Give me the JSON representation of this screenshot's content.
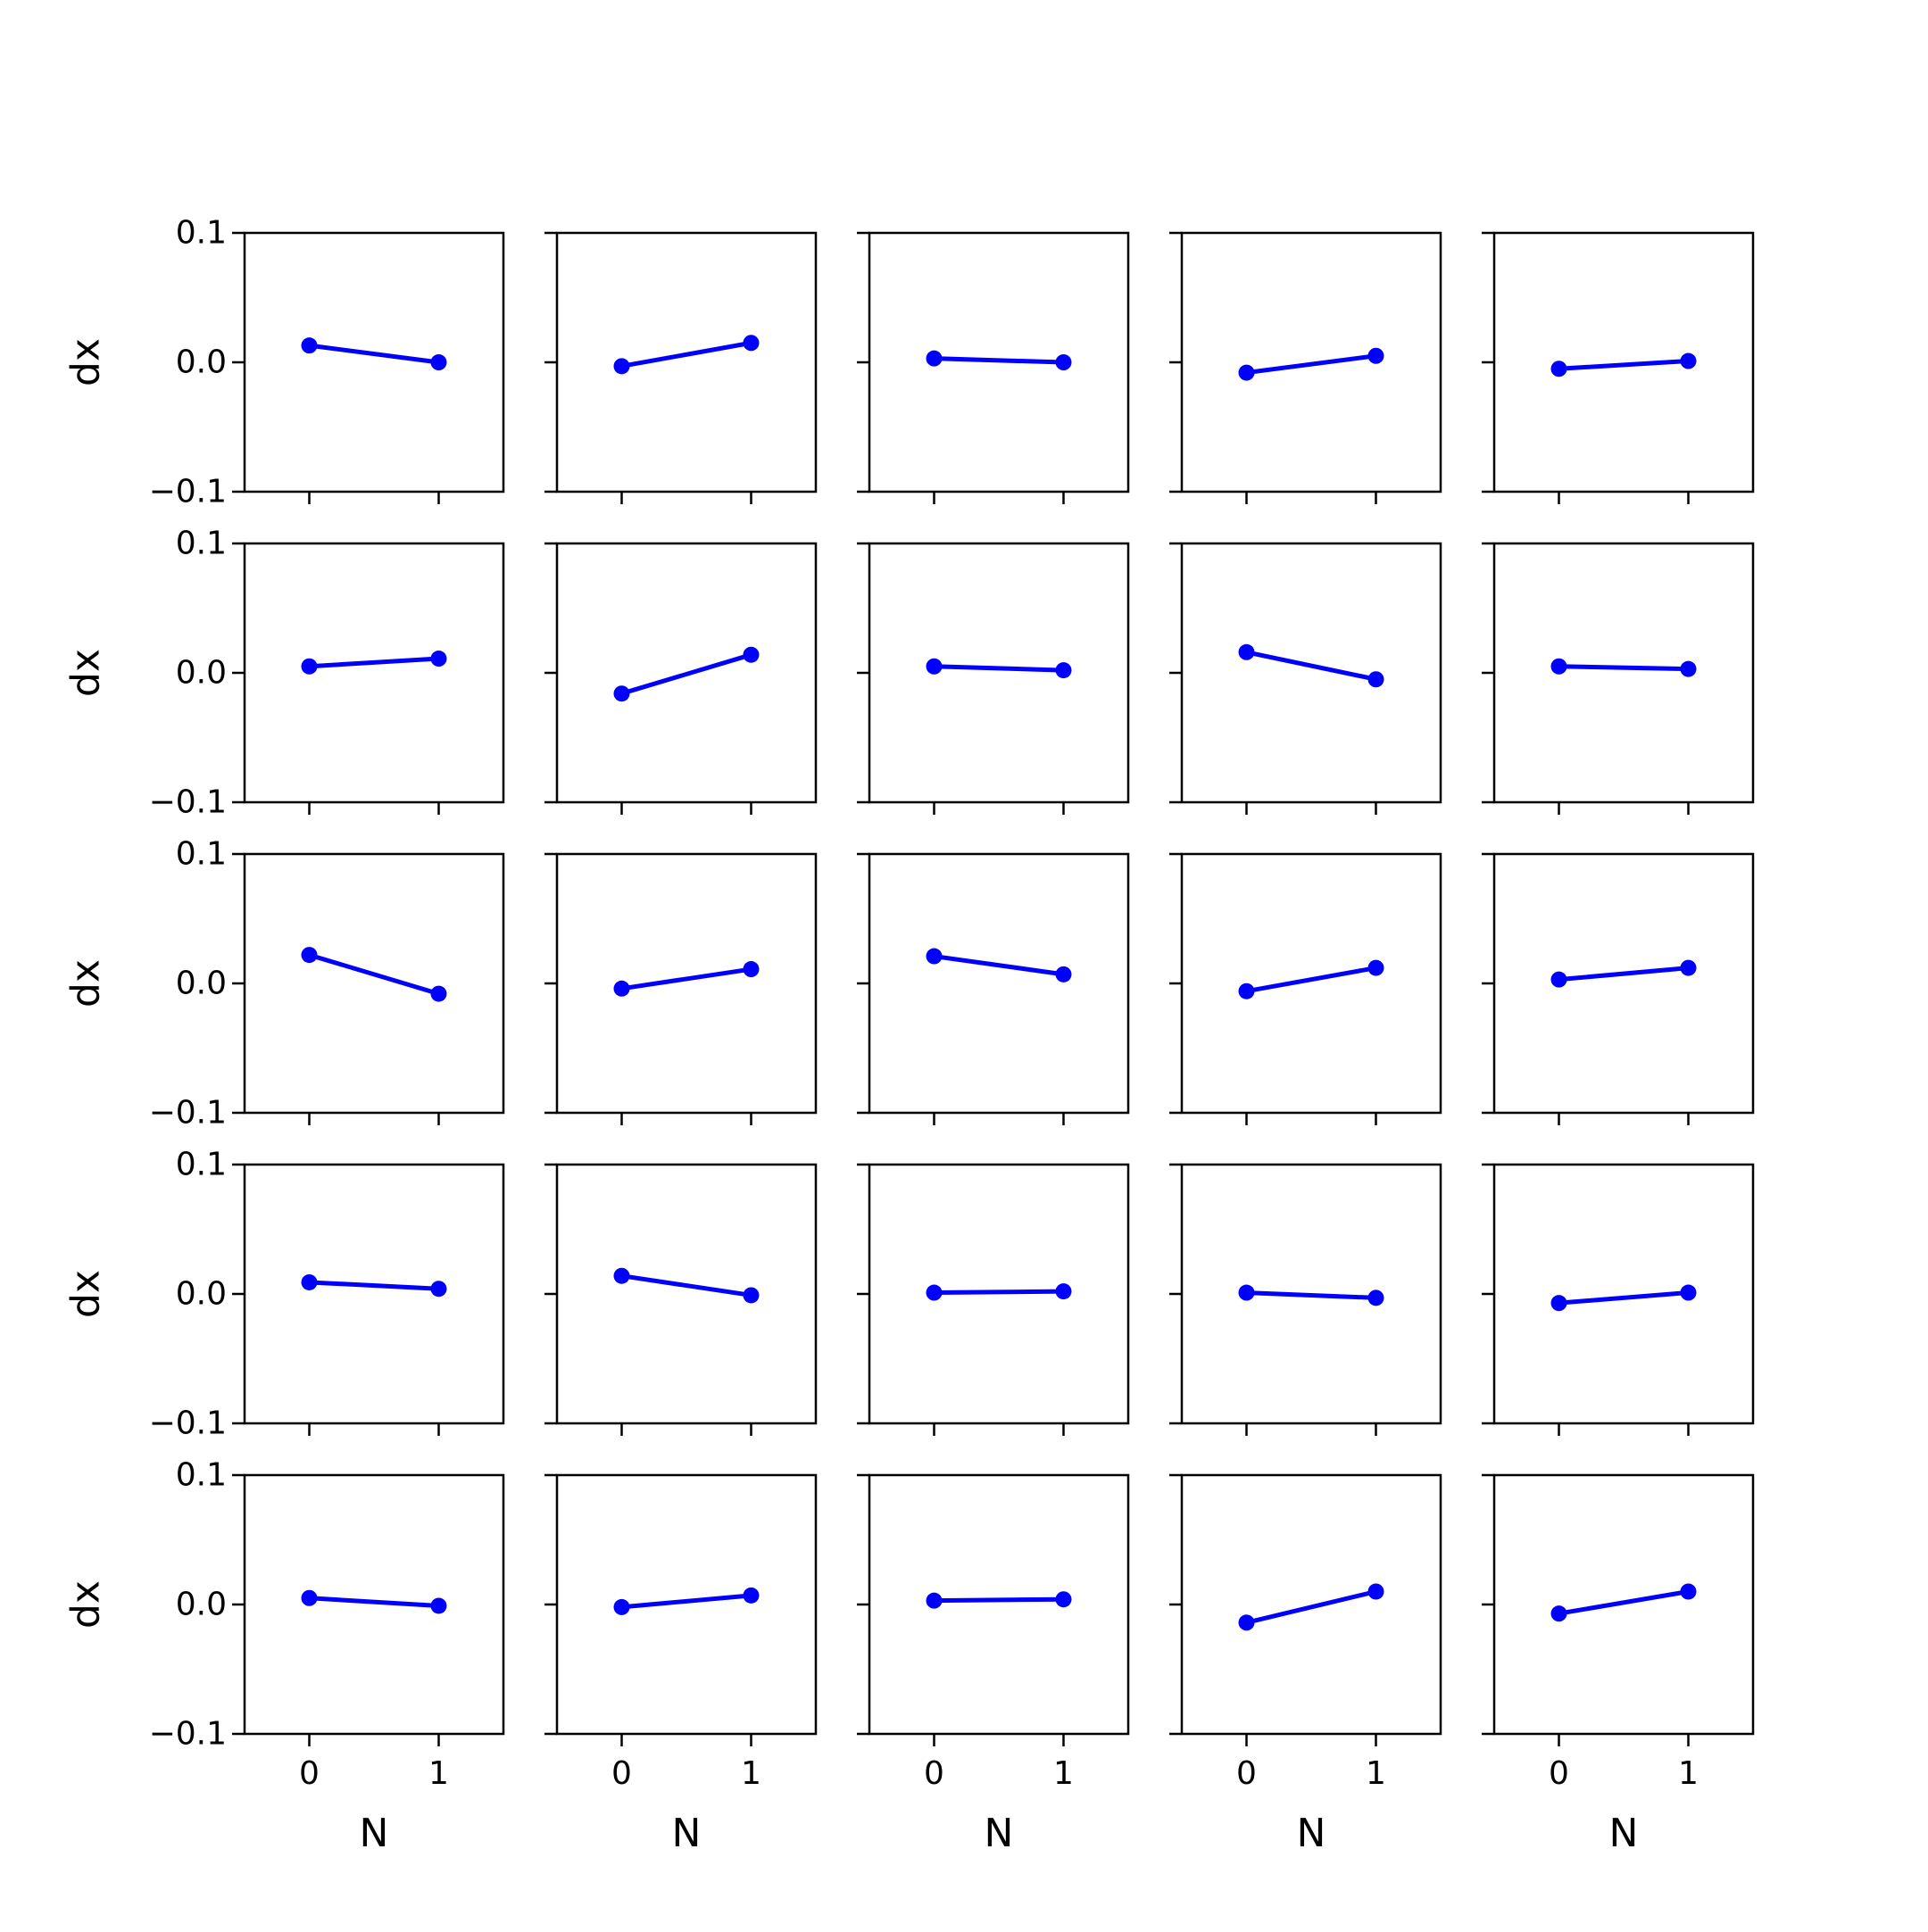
{
  "chart_data": {
    "type": "line",
    "layout": {
      "rows": 5,
      "cols": 5
    },
    "xlabel": "N",
    "ylabel": "dx",
    "x": [
      0,
      1
    ],
    "xticks": [
      0,
      1
    ],
    "xtick_labels": [
      "0",
      "1"
    ],
    "xlim": [
      -0.5,
      1.5
    ],
    "ylim": [
      -0.1,
      0.1
    ],
    "yticks": [
      0.1,
      0.0,
      -0.1
    ],
    "ytick_labels": [
      "0.1",
      "0.0",
      "−0.1"
    ],
    "grid": false,
    "series_color": "#0000ff",
    "panels": [
      [
        [
          0.013,
          0.0
        ],
        [
          -0.003,
          0.015
        ],
        [
          0.003,
          0.0
        ],
        [
          -0.008,
          0.005
        ],
        [
          -0.005,
          0.001
        ]
      ],
      [
        [
          0.005,
          0.011
        ],
        [
          -0.016,
          0.014
        ],
        [
          0.005,
          0.002
        ],
        [
          0.016,
          -0.005
        ],
        [
          0.005,
          0.003
        ]
      ],
      [
        [
          0.022,
          -0.008
        ],
        [
          -0.004,
          0.011
        ],
        [
          0.021,
          0.007
        ],
        [
          -0.006,
          0.012
        ],
        [
          0.003,
          0.012
        ]
      ],
      [
        [
          0.009,
          0.004
        ],
        [
          0.014,
          -0.001
        ],
        [
          0.001,
          0.002
        ],
        [
          0.001,
          -0.003
        ],
        [
          -0.007,
          0.001
        ]
      ],
      [
        [
          0.005,
          -0.001
        ],
        [
          -0.002,
          0.007
        ],
        [
          0.003,
          0.004
        ],
        [
          -0.014,
          0.01
        ],
        [
          -0.007,
          0.01
        ]
      ]
    ]
  }
}
